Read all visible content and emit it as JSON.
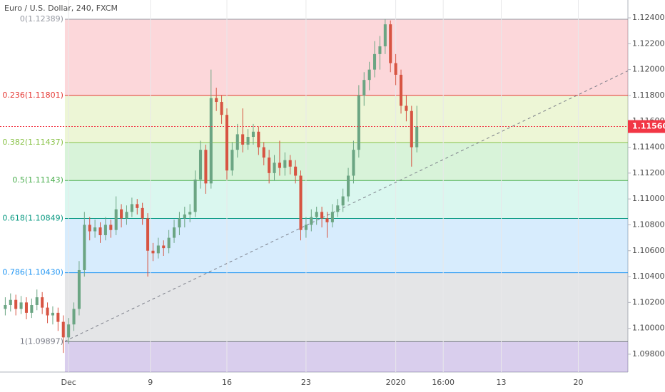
{
  "chart_data": {
    "type": "candlestick",
    "title": "Euro / U.S. Dollar, 240, FXCM",
    "up_color": "#6ba583",
    "down_color": "#d75442",
    "x": [
      -12,
      -11,
      -10,
      -9,
      -8,
      -7,
      -6,
      -5,
      -4,
      -3,
      -2,
      -1,
      0,
      1,
      2,
      3,
      4,
      5,
      6,
      7,
      8,
      9,
      10,
      11,
      12,
      13,
      14,
      15,
      16,
      17,
      18,
      19,
      20,
      21,
      22,
      23,
      24,
      25,
      26,
      27,
      28,
      29,
      30,
      31,
      32,
      33,
      34,
      35,
      36,
      37,
      38,
      39,
      40,
      41,
      42,
      43,
      44,
      45,
      46,
      47,
      48,
      49,
      50,
      51,
      52,
      53,
      54,
      55,
      56,
      57,
      58,
      59,
      60,
      61,
      62,
      63,
      64,
      65,
      66
    ],
    "candles": [
      [
        1.1015,
        1.1024,
        1.101,
        1.1018
      ],
      [
        1.1018,
        1.1027,
        1.1013,
        1.1022
      ],
      [
        1.1022,
        1.1026,
        1.101,
        1.1015
      ],
      [
        1.1015,
        1.1025,
        1.1011,
        1.102
      ],
      [
        1.102,
        1.1024,
        1.1007,
        1.1012
      ],
      [
        1.1012,
        1.1023,
        1.1008,
        1.1018
      ],
      [
        1.1018,
        1.103,
        1.1014,
        1.1024
      ],
      [
        1.1024,
        1.1028,
        1.1011,
        1.1016
      ],
      [
        1.1016,
        1.102,
        1.1004,
        1.101
      ],
      [
        1.101,
        1.1017,
        1.1003,
        1.1012
      ],
      [
        1.1012,
        1.1016,
        1.0998,
        1.1005
      ],
      [
        1.1005,
        1.101,
        1.0981,
        1.0993
      ],
      [
        1.0993,
        1.1008,
        1.0988,
        1.1003
      ],
      [
        1.1003,
        1.102,
        1.0998,
        1.1015
      ],
      [
        1.1015,
        1.1052,
        1.101,
        1.1045
      ],
      [
        1.1045,
        1.109,
        1.104,
        1.108
      ],
      [
        1.108,
        1.1086,
        1.1068,
        1.1075
      ],
      [
        1.1075,
        1.1084,
        1.107,
        1.1078
      ],
      [
        1.1078,
        1.1082,
        1.1066,
        1.1072
      ],
      [
        1.1072,
        1.1086,
        1.1068,
        1.108
      ],
      [
        1.108,
        1.1084,
        1.107,
        1.1076
      ],
      [
        1.1076,
        1.1102,
        1.1072,
        1.1092
      ],
      [
        1.1092,
        1.1096,
        1.1078,
        1.1085
      ],
      [
        1.1085,
        1.1095,
        1.108,
        1.109
      ],
      [
        1.109,
        1.1101,
        1.1086,
        1.1096
      ],
      [
        1.1096,
        1.11,
        1.1088,
        1.1093
      ],
      [
        1.1093,
        1.1097,
        1.108,
        1.1085
      ],
      [
        1.1085,
        1.1089,
        1.104,
        1.106
      ],
      [
        1.106,
        1.1066,
        1.1052,
        1.1058
      ],
      [
        1.1058,
        1.107,
        1.1054,
        1.1064
      ],
      [
        1.1064,
        1.1068,
        1.1056,
        1.1062
      ],
      [
        1.1062,
        1.1076,
        1.1058,
        1.107
      ],
      [
        1.107,
        1.1084,
        1.1066,
        1.1078
      ],
      [
        1.1078,
        1.109,
        1.1072,
        1.1085
      ],
      [
        1.1085,
        1.1094,
        1.1078,
        1.1088
      ],
      [
        1.1088,
        1.1096,
        1.1082,
        1.109
      ],
      [
        1.109,
        1.1122,
        1.1086,
        1.1115
      ],
      [
        1.1115,
        1.1145,
        1.1108,
        1.1138
      ],
      [
        1.1138,
        1.1142,
        1.1104,
        1.1112
      ],
      [
        1.1112,
        1.12,
        1.1108,
        1.1178
      ],
      [
        1.1178,
        1.1186,
        1.1168,
        1.1175
      ],
      [
        1.1175,
        1.118,
        1.1158,
        1.1165
      ],
      [
        1.1165,
        1.117,
        1.1115,
        1.1122
      ],
      [
        1.1122,
        1.1144,
        1.1118,
        1.1138
      ],
      [
        1.1138,
        1.1158,
        1.1132,
        1.115
      ],
      [
        1.115,
        1.117,
        1.1136,
        1.1142
      ],
      [
        1.1142,
        1.1154,
        1.1138,
        1.1148
      ],
      [
        1.1148,
        1.1158,
        1.1142,
        1.1152
      ],
      [
        1.1152,
        1.1156,
        1.1134,
        1.114
      ],
      [
        1.114,
        1.1144,
        1.1126,
        1.1132
      ],
      [
        1.1132,
        1.1138,
        1.1112,
        1.112
      ],
      [
        1.112,
        1.1134,
        1.1114,
        1.1128
      ],
      [
        1.1128,
        1.1145,
        1.1118,
        1.1124
      ],
      [
        1.1124,
        1.1136,
        1.1118,
        1.113
      ],
      [
        1.113,
        1.1134,
        1.1119,
        1.1125
      ],
      [
        1.1125,
        1.113,
        1.1112,
        1.1118
      ],
      [
        1.1118,
        1.1122,
        1.1068,
        1.1076
      ],
      [
        1.1076,
        1.1086,
        1.107,
        1.108
      ],
      [
        1.108,
        1.1092,
        1.1075,
        1.1086
      ],
      [
        1.1086,
        1.1094,
        1.108,
        1.109
      ],
      [
        1.109,
        1.1094,
        1.1078,
        1.1085
      ],
      [
        1.1085,
        1.109,
        1.107,
        1.1082
      ],
      [
        1.1082,
        1.1096,
        1.1078,
        1.109
      ],
      [
        1.109,
        1.11,
        1.1086,
        1.1095
      ],
      [
        1.1095,
        1.1108,
        1.109,
        1.1102
      ],
      [
        1.1102,
        1.1124,
        1.1098,
        1.1118
      ],
      [
        1.1118,
        1.1145,
        1.1112,
        1.1138
      ],
      [
        1.1138,
        1.1188,
        1.1132,
        1.118
      ],
      [
        1.118,
        1.1198,
        1.1172,
        1.1192
      ],
      [
        1.1192,
        1.1206,
        1.1184,
        1.12
      ],
      [
        1.12,
        1.1222,
        1.1194,
        1.1212
      ],
      [
        1.1212,
        1.1226,
        1.12,
        1.1218
      ],
      [
        1.1218,
        1.1239,
        1.1212,
        1.1235
      ],
      [
        1.1235,
        1.1238,
        1.1198,
        1.1205
      ],
      [
        1.1205,
        1.1212,
        1.1188,
        1.1196
      ],
      [
        1.1196,
        1.12,
        1.1166,
        1.1172
      ],
      [
        1.1172,
        1.118,
        1.116,
        1.1168
      ],
      [
        1.1168,
        1.1172,
        1.1125,
        1.114
      ],
      [
        1.114,
        1.1172,
        1.1136,
        1.1156
      ]
    ],
    "xlim": [
      -13,
      106
    ],
    "xticks": [
      {
        "value": 0,
        "label": "Dec"
      },
      {
        "value": 15.5,
        "label": "9"
      },
      {
        "value": 30,
        "label": "16"
      },
      {
        "value": 45,
        "label": "23"
      },
      {
        "value": 62,
        "label": "2020"
      },
      {
        "value": 71,
        "label": "16:00"
      },
      {
        "value": 82,
        "label": "13"
      },
      {
        "value": 96.6,
        "label": "20"
      }
    ],
    "ylim": [
      1.09662,
      1.12538
    ],
    "yticks": [
      {
        "value": 1.098,
        "label": "1.09800"
      },
      {
        "value": 1.1,
        "label": "1.10000"
      },
      {
        "value": 1.102,
        "label": "1.10200"
      },
      {
        "value": 1.104,
        "label": "1.10400"
      },
      {
        "value": 1.106,
        "label": "1.10600"
      },
      {
        "value": 1.108,
        "label": "1.10800"
      },
      {
        "value": 1.11,
        "label": "1.11000"
      },
      {
        "value": 1.112,
        "label": "1.11200"
      },
      {
        "value": 1.114,
        "label": "1.11400"
      },
      {
        "value": 1.116,
        "label": "1.11600"
      },
      {
        "value": 1.118,
        "label": "1.11800"
      },
      {
        "value": 1.12,
        "label": "1.12000"
      },
      {
        "value": 1.122,
        "label": "1.12200"
      },
      {
        "value": 1.124,
        "label": "1.12400"
      }
    ],
    "fib_start_x": -0.7,
    "fib_levels": [
      {
        "value": 1.12389,
        "label": "0(1.12389)",
        "color": "#9598a1",
        "fill": "rgba(242,54,69,0.2)"
      },
      {
        "value": 1.11801,
        "label": "0.236(1.11801)",
        "color": "#e53935",
        "fill": "rgba(195,225,120,0.3)"
      },
      {
        "value": 1.11437,
        "label": "0.382(1.11437)",
        "color": "#8bc34a",
        "fill": "rgba(76,200,80,0.22)"
      },
      {
        "value": 1.11143,
        "label": "0.5(1.11143)",
        "color": "#4caf50",
        "fill": "rgba(8,200,150,0.15)"
      },
      {
        "value": 1.10849,
        "label": "0.618(1.10849)",
        "color": "#089981",
        "fill": "rgba(33,150,243,0.18)"
      },
      {
        "value": 1.1043,
        "label": "0.786(1.10430)",
        "color": "#2196f3",
        "fill": "rgba(120,123,134,0.2)"
      },
      {
        "value": 1.09897,
        "label": "1(1.09897)",
        "color": "#787b86",
        "fill": "rgba(103,58,183,0.25)"
      }
    ],
    "trendline": {
      "x": [
        -0.7,
        106
      ],
      "y": [
        1.099,
        1.1199
      ],
      "color": "#787b86"
    },
    "last_price": {
      "value": 1.1156,
      "value_label": "1.11560",
      "color": "#f23645"
    }
  }
}
